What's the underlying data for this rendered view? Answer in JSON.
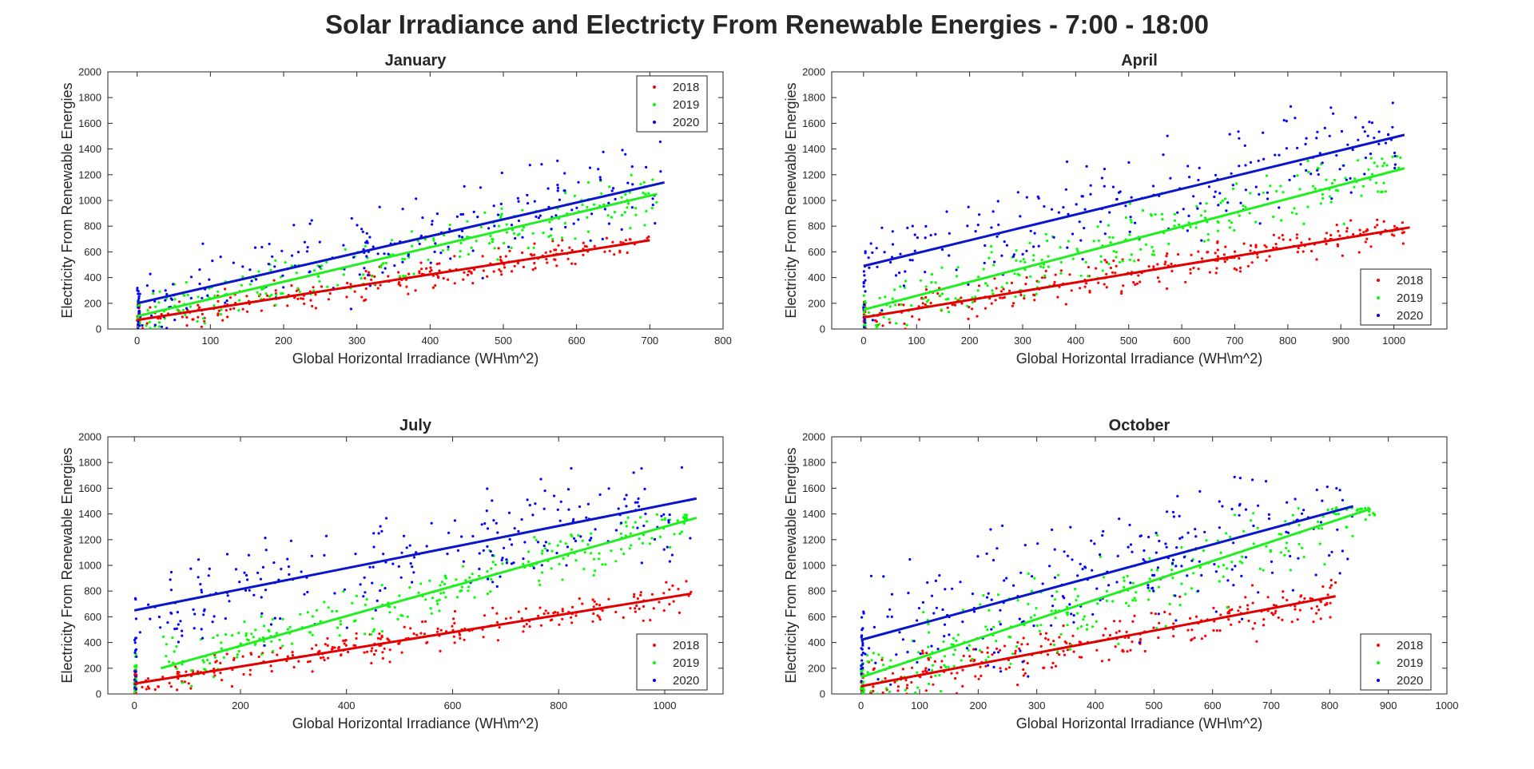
{
  "figure": {
    "title": "Solar Irradiance and Electricty From Renewable Energies - 7:00 - 18:00"
  },
  "chart_data": [
    {
      "type": "scatter",
      "title": "January",
      "xlabel": "Global Horizontal Irradiance (WH\\m^2)",
      "ylabel": "Electricity From Renewable Energies",
      "xlim": [
        -40,
        800
      ],
      "ylim": [
        0,
        2000
      ],
      "xticks": [
        0,
        100,
        200,
        300,
        400,
        500,
        600,
        700,
        800
      ],
      "yticks": [
        0,
        200,
        400,
        600,
        800,
        1000,
        1200,
        1400,
        1600,
        1800,
        2000
      ],
      "legend": "top-right",
      "grid": false,
      "series": [
        {
          "name": "2018",
          "color": "#ff0000",
          "trendline": {
            "x": [
              0,
              700
            ],
            "y": [
              70,
              690
            ]
          },
          "cloud": {
            "xmin": 0,
            "xmax": 700,
            "width": 160,
            "count": 230,
            "floor": 0,
            "ceil": 720
          }
        },
        {
          "name": "2019",
          "color": "#00ff00",
          "trendline": {
            "x": [
              0,
              710
            ],
            "y": [
              100,
              1050
            ]
          },
          "cloud": {
            "xmin": 0,
            "xmax": 710,
            "width": 280,
            "count": 240,
            "floor": 0,
            "ceil": 1250
          }
        },
        {
          "name": "2020",
          "color": "#0000ff",
          "trendline": {
            "x": [
              0,
              720
            ],
            "y": [
              200,
              1140
            ]
          },
          "cloud": {
            "xmin": 0,
            "xmax": 720,
            "width": 520,
            "count": 210,
            "floor": 0,
            "ceil": 1480
          }
        }
      ]
    },
    {
      "type": "scatter",
      "title": "April",
      "xlabel": "Global Horizontal Irradiance (WH\\m^2)",
      "ylabel": "Electricity From Renewable Energies",
      "xlim": [
        -60,
        1100
      ],
      "ylim": [
        0,
        2000
      ],
      "xticks": [
        0,
        100,
        200,
        300,
        400,
        500,
        600,
        700,
        800,
        900,
        1000
      ],
      "yticks": [
        0,
        200,
        400,
        600,
        800,
        1000,
        1200,
        1400,
        1600,
        1800,
        2000
      ],
      "legend": "bottom-right",
      "grid": false,
      "series": [
        {
          "name": "2018",
          "color": "#ff0000",
          "trendline": {
            "x": [
              0,
              1030
            ],
            "y": [
              90,
              790
            ]
          },
          "cloud": {
            "xmin": 0,
            "xmax": 1030,
            "width": 200,
            "count": 260,
            "floor": 0,
            "ceil": 850
          }
        },
        {
          "name": "2019",
          "color": "#00ff00",
          "trendline": {
            "x": [
              0,
              1020
            ],
            "y": [
              150,
              1250
            ]
          },
          "cloud": {
            "xmin": 0,
            "xmax": 1020,
            "width": 340,
            "count": 260,
            "floor": 0,
            "ceil": 1350
          }
        },
        {
          "name": "2020",
          "color": "#0000ff",
          "trendline": {
            "x": [
              0,
              1020
            ],
            "y": [
              490,
              1510
            ]
          },
          "cloud": {
            "xmin": 0,
            "xmax": 1020,
            "width": 560,
            "count": 220,
            "floor": 60,
            "ceil": 1840
          }
        }
      ]
    },
    {
      "type": "scatter",
      "title": "July",
      "xlabel": "Global Horizontal Irradiance (WH\\m^2)",
      "ylabel": "Electricity From Renewable Energies",
      "xlim": [
        -50,
        1110
      ],
      "ylim": [
        0,
        2000
      ],
      "xticks": [
        0,
        200,
        400,
        600,
        800,
        1000
      ],
      "yticks": [
        0,
        200,
        400,
        600,
        800,
        1000,
        1200,
        1400,
        1600,
        1800,
        2000
      ],
      "legend": "bottom-right",
      "grid": false,
      "series": [
        {
          "name": "2018",
          "color": "#ff0000",
          "trendline": {
            "x": [
              0,
              1050
            ],
            "y": [
              80,
              780
            ]
          },
          "cloud": {
            "xmin": 0,
            "xmax": 1050,
            "width": 180,
            "count": 260,
            "floor": 30,
            "ceil": 950
          }
        },
        {
          "name": "2019",
          "color": "#00ff00",
          "trendline": {
            "x": [
              50,
              1060
            ],
            "y": [
              200,
              1370
            ]
          },
          "cloud": {
            "xmin": 50,
            "xmax": 1060,
            "width": 300,
            "count": 260,
            "floor": 60,
            "ceil": 1400
          }
        },
        {
          "name": "2020",
          "color": "#0000ff",
          "trendline": {
            "x": [
              0,
              1060
            ],
            "y": [
              650,
              1520
            ]
          },
          "cloud": {
            "xmin": 0,
            "xmax": 1050,
            "width": 560,
            "count": 240,
            "floor": 100,
            "ceil": 1780
          }
        }
      ]
    },
    {
      "type": "scatter",
      "title": "October",
      "xlabel": "Global Horizontal Irradiance (WH\\m^2)",
      "ylabel": "Electricity From Renewable Energies",
      "xlim": [
        -50,
        1000
      ],
      "ylim": [
        0,
        2000
      ],
      "xticks": [
        0,
        100,
        200,
        300,
        400,
        500,
        600,
        700,
        800,
        900,
        1000
      ],
      "yticks": [
        0,
        200,
        400,
        600,
        800,
        1000,
        1200,
        1400,
        1600,
        1800,
        2000
      ],
      "legend": "bottom-right",
      "grid": false,
      "series": [
        {
          "name": "2018",
          "color": "#ff0000",
          "trendline": {
            "x": [
              0,
              810
            ],
            "y": [
              60,
              760
            ]
          },
          "cloud": {
            "xmin": 0,
            "xmax": 810,
            "width": 260,
            "count": 260,
            "floor": 0,
            "ceil": 950
          }
        },
        {
          "name": "2019",
          "color": "#00ff00",
          "trendline": {
            "x": [
              0,
              870
            ],
            "y": [
              130,
              1440
            ]
          },
          "cloud": {
            "xmin": 0,
            "xmax": 880,
            "width": 480,
            "count": 260,
            "floor": 0,
            "ceil": 1450
          }
        },
        {
          "name": "2020",
          "color": "#0000ff",
          "trendline": {
            "x": [
              0,
              840
            ],
            "y": [
              420,
              1460
            ]
          },
          "cloud": {
            "xmin": 0,
            "xmax": 840,
            "width": 760,
            "count": 240,
            "floor": 0,
            "ceil": 1720
          }
        }
      ]
    }
  ]
}
